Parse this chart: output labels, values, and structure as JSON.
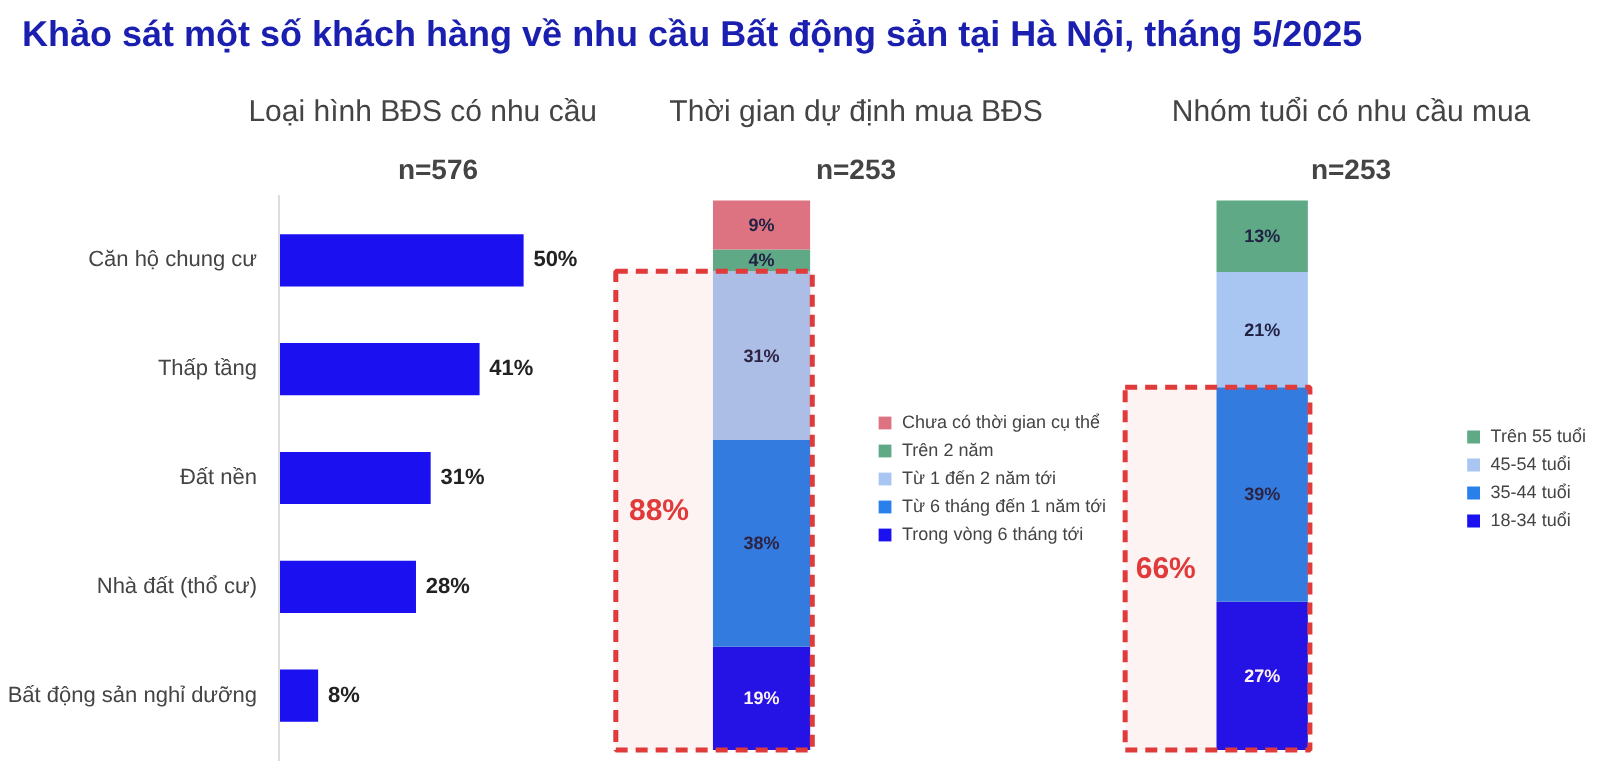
{
  "chart_data": [
    {
      "type": "bar",
      "orientation": "horizontal",
      "title": "Loại hình BĐS có nhu cầu",
      "subtitle": "n=576",
      "annotations": [
        "Khảo sát một số khách hàng về nhu cầu Bất động sản tại Hà Nội, tháng 5/2025"
      ],
      "categories": [
        "Căn hộ chung cư",
        "Thấp tầng",
        "Đất nền",
        "Nhà đất (thổ cư)",
        "Bất động sản nghỉ dưỡng"
      ],
      "values": [
        50,
        41,
        31,
        28,
        8
      ],
      "value_labels": [
        "50%",
        "41%",
        "31%",
        "28%",
        "8%"
      ],
      "color": "#1a10f0"
    },
    {
      "type": "bar",
      "stacked": true,
      "title": "Thời gian dự định mua BĐS",
      "subtitle": "n=253",
      "categories": [
        null
      ],
      "legend": "right",
      "series": [
        {
          "name": "Trong vòng 6 tháng tới",
          "color": "#1a10f0",
          "values": [
            19
          ],
          "value_labels": [
            "19%"
          ]
        },
        {
          "name": "Từ 6 tháng đến 1 năm tới",
          "color": "#2a80ea",
          "values": [
            38
          ],
          "value_labels": [
            "38%"
          ]
        },
        {
          "name": "Từ 1 đến 2 năm tới",
          "color": "#a9c6f2",
          "values": [
            31
          ],
          "value_labels": [
            "31%"
          ]
        },
        {
          "name": "Trên 2 năm",
          "color": "#5fa987",
          "values": [
            4
          ],
          "value_labels": [
            "4%"
          ]
        },
        {
          "name": "Chưa có thời gian cụ thể",
          "color": "#dd7380",
          "values": [
            9
          ],
          "value_labels": [
            "9%"
          ]
        }
      ],
      "bands": [
        {
          "axis": "y",
          "from": 0,
          "to": 88,
          "label": "88%",
          "color": "#e03a3a"
        }
      ]
    },
    {
      "type": "bar",
      "stacked": true,
      "title": "Nhóm tuổi có nhu cầu mua",
      "subtitle": "n=253",
      "categories": [
        null
      ],
      "legend": "right",
      "series": [
        {
          "name": "18-34 tuổi",
          "color": "#1a10f0",
          "values": [
            27
          ],
          "value_labels": [
            "27%"
          ]
        },
        {
          "name": "35-44 tuổi",
          "color": "#2a80ea",
          "values": [
            39
          ],
          "value_labels": [
            "39%"
          ]
        },
        {
          "name": "45-54 tuổi",
          "color": "#a9c6f2",
          "values": [
            21
          ],
          "value_labels": [
            "21%"
          ]
        },
        {
          "name": "Trên 55 tuổi",
          "color": "#5fa987",
          "values": [
            13
          ],
          "value_labels": [
            "13%"
          ]
        }
      ],
      "bands": [
        {
          "axis": "y",
          "from": 0,
          "to": 66,
          "label": "66%",
          "color": "#e03a3a"
        }
      ]
    }
  ]
}
